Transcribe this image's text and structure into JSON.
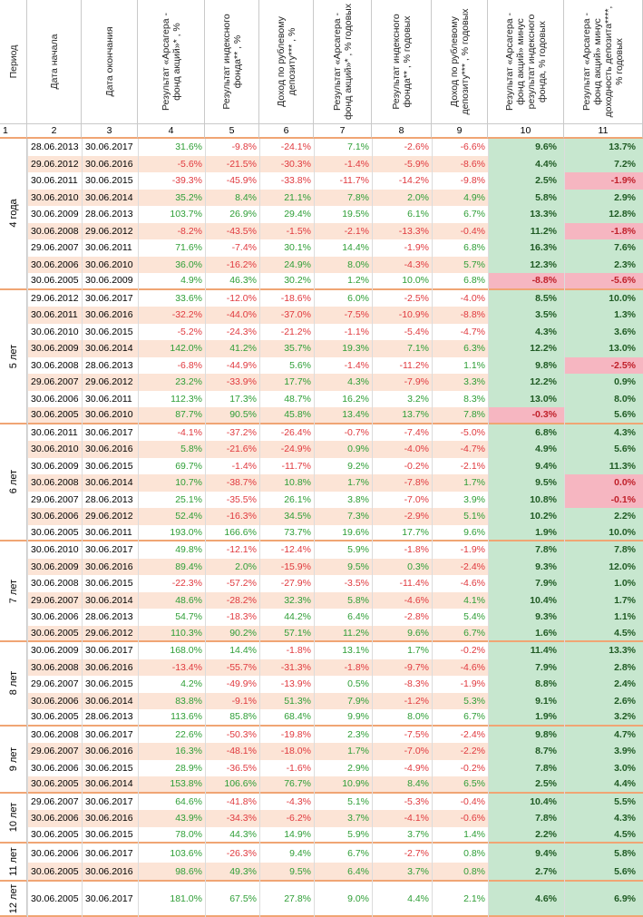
{
  "headers": {
    "col1": "Период",
    "col2": "Дата начала",
    "col3": "Дата окончания",
    "col4": "Результат «Арсагера - фонд акций»* , %",
    "col5": "Результат индексного фонда** , %",
    "col6": "Доход по рублевому депозиту*** , %",
    "col7": "Результат «Арсагера - фонд акций»* , % годовых",
    "col8": "Результат индексного фонда** , % годовых",
    "col9": "Доход по рублевому депозиту*** , % годовых",
    "col10": "Результат «Арсагера - фонд акций» минус результат индексного фонда, % годовых",
    "col11": "Результат «Арсагера - фонд акций» минус доходность депозита****, % годовых"
  },
  "col_numbers": [
    "1",
    "2",
    "3",
    "4",
    "5",
    "6",
    "7",
    "8",
    "9",
    "10",
    "11"
  ],
  "groups": [
    {
      "label": "4 года",
      "rows": [
        [
          "28.06.2013",
          "30.06.2017",
          "31.6%",
          "-9.8%",
          "-24.1%",
          "7.1%",
          "-2.6%",
          "-6.6%",
          "9.6%",
          "13.7%"
        ],
        [
          "29.06.2012",
          "30.06.2016",
          "-5.6%",
          "-21.5%",
          "-30.3%",
          "-1.4%",
          "-5.9%",
          "-8.6%",
          "4.4%",
          "7.2%"
        ],
        [
          "30.06.2011",
          "30.06.2015",
          "-39.3%",
          "-45.9%",
          "-33.8%",
          "-11.7%",
          "-14.2%",
          "-9.8%",
          "2.5%",
          "-1.9%"
        ],
        [
          "30.06.2010",
          "30.06.2014",
          "35.2%",
          "8.4%",
          "21.1%",
          "7.8%",
          "2.0%",
          "4.9%",
          "5.8%",
          "2.9%"
        ],
        [
          "30.06.2009",
          "28.06.2013",
          "103.7%",
          "26.9%",
          "29.4%",
          "19.5%",
          "6.1%",
          "6.7%",
          "13.3%",
          "12.8%"
        ],
        [
          "30.06.2008",
          "29.06.2012",
          "-8.2%",
          "-43.5%",
          "-1.5%",
          "-2.1%",
          "-13.3%",
          "-0.4%",
          "11.2%",
          "-1.8%"
        ],
        [
          "29.06.2007",
          "30.06.2011",
          "71.6%",
          "-7.4%",
          "30.1%",
          "14.4%",
          "-1.9%",
          "6.8%",
          "16.3%",
          "7.6%"
        ],
        [
          "30.06.2006",
          "30.06.2010",
          "36.0%",
          "-16.2%",
          "24.9%",
          "8.0%",
          "-4.3%",
          "5.7%",
          "12.3%",
          "2.3%"
        ],
        [
          "30.06.2005",
          "30.06.2009",
          "4.9%",
          "46.3%",
          "30.2%",
          "1.2%",
          "10.0%",
          "6.8%",
          "-8.8%",
          "-5.6%"
        ]
      ]
    },
    {
      "label": "5 лет",
      "rows": [
        [
          "29.06.2012",
          "30.06.2017",
          "33.6%",
          "-12.0%",
          "-18.6%",
          "6.0%",
          "-2.5%",
          "-4.0%",
          "8.5%",
          "10.0%"
        ],
        [
          "30.06.2011",
          "30.06.2016",
          "-32.2%",
          "-44.0%",
          "-37.0%",
          "-7.5%",
          "-10.9%",
          "-8.8%",
          "3.5%",
          "1.3%"
        ],
        [
          "30.06.2010",
          "30.06.2015",
          "-5.2%",
          "-24.3%",
          "-21.2%",
          "-1.1%",
          "-5.4%",
          "-4.7%",
          "4.3%",
          "3.6%"
        ],
        [
          "30.06.2009",
          "30.06.2014",
          "142.0%",
          "41.2%",
          "35.7%",
          "19.3%",
          "7.1%",
          "6.3%",
          "12.2%",
          "13.0%"
        ],
        [
          "30.06.2008",
          "28.06.2013",
          "-6.8%",
          "-44.9%",
          "5.6%",
          "-1.4%",
          "-11.2%",
          "1.1%",
          "9.8%",
          "-2.5%"
        ],
        [
          "29.06.2007",
          "29.06.2012",
          "23.2%",
          "-33.9%",
          "17.7%",
          "4.3%",
          "-7.9%",
          "3.3%",
          "12.2%",
          "0.9%"
        ],
        [
          "30.06.2006",
          "30.06.2011",
          "112.3%",
          "17.3%",
          "48.7%",
          "16.2%",
          "3.2%",
          "8.3%",
          "13.0%",
          "8.0%"
        ],
        [
          "30.06.2005",
          "30.06.2010",
          "87.7%",
          "90.5%",
          "45.8%",
          "13.4%",
          "13.7%",
          "7.8%",
          "-0.3%",
          "5.6%"
        ]
      ]
    },
    {
      "label": "6 лет",
      "rows": [
        [
          "30.06.2011",
          "30.06.2017",
          "-4.1%",
          "-37.2%",
          "-26.4%",
          "-0.7%",
          "-7.4%",
          "-5.0%",
          "6.8%",
          "4.3%"
        ],
        [
          "30.06.2010",
          "30.06.2016",
          "5.8%",
          "-21.6%",
          "-24.9%",
          "0.9%",
          "-4.0%",
          "-4.7%",
          "4.9%",
          "5.6%"
        ],
        [
          "30.06.2009",
          "30.06.2015",
          "69.7%",
          "-1.4%",
          "-11.7%",
          "9.2%",
          "-0.2%",
          "-2.1%",
          "9.4%",
          "11.3%"
        ],
        [
          "30.06.2008",
          "30.06.2014",
          "10.7%",
          "-38.7%",
          "10.8%",
          "1.7%",
          "-7.8%",
          "1.7%",
          "9.5%",
          "0.0%"
        ],
        [
          "29.06.2007",
          "28.06.2013",
          "25.1%",
          "-35.5%",
          "26.1%",
          "3.8%",
          "-7.0%",
          "3.9%",
          "10.8%",
          "-0.1%"
        ],
        [
          "30.06.2006",
          "29.06.2012",
          "52.4%",
          "-16.3%",
          "34.5%",
          "7.3%",
          "-2.9%",
          "5.1%",
          "10.2%",
          "2.2%"
        ],
        [
          "30.06.2005",
          "30.06.2011",
          "193.0%",
          "166.6%",
          "73.7%",
          "19.6%",
          "17.7%",
          "9.6%",
          "1.9%",
          "10.0%"
        ]
      ]
    },
    {
      "label": "7 лет",
      "rows": [
        [
          "30.06.2010",
          "30.06.2017",
          "49.8%",
          "-12.1%",
          "-12.4%",
          "5.9%",
          "-1.8%",
          "-1.9%",
          "7.8%",
          "7.8%"
        ],
        [
          "30.06.2009",
          "30.06.2016",
          "89.4%",
          "2.0%",
          "-15.9%",
          "9.5%",
          "0.3%",
          "-2.4%",
          "9.3%",
          "12.0%"
        ],
        [
          "30.06.2008",
          "30.06.2015",
          "-22.3%",
          "-57.2%",
          "-27.9%",
          "-3.5%",
          "-11.4%",
          "-4.6%",
          "7.9%",
          "1.0%"
        ],
        [
          "29.06.2007",
          "30.06.2014",
          "48.6%",
          "-28.2%",
          "32.3%",
          "5.8%",
          "-4.6%",
          "4.1%",
          "10.4%",
          "1.7%"
        ],
        [
          "30.06.2006",
          "28.06.2013",
          "54.7%",
          "-18.3%",
          "44.2%",
          "6.4%",
          "-2.8%",
          "5.4%",
          "9.3%",
          "1.1%"
        ],
        [
          "30.06.2005",
          "29.06.2012",
          "110.3%",
          "90.2%",
          "57.1%",
          "11.2%",
          "9.6%",
          "6.7%",
          "1.6%",
          "4.5%"
        ]
      ]
    },
    {
      "label": "8 лет",
      "rows": [
        [
          "30.06.2009",
          "30.06.2017",
          "168.0%",
          "14.4%",
          "-1.8%",
          "13.1%",
          "1.7%",
          "-0.2%",
          "11.4%",
          "13.3%"
        ],
        [
          "30.06.2008",
          "30.06.2016",
          "-13.4%",
          "-55.7%",
          "-31.3%",
          "-1.8%",
          "-9.7%",
          "-4.6%",
          "7.9%",
          "2.8%"
        ],
        [
          "29.06.2007",
          "30.06.2015",
          "4.2%",
          "-49.9%",
          "-13.9%",
          "0.5%",
          "-8.3%",
          "-1.9%",
          "8.8%",
          "2.4%"
        ],
        [
          "30.06.2006",
          "30.06.2014",
          "83.8%",
          "-9.1%",
          "51.3%",
          "7.9%",
          "-1.2%",
          "5.3%",
          "9.1%",
          "2.6%"
        ],
        [
          "30.06.2005",
          "28.06.2013",
          "113.6%",
          "85.8%",
          "68.4%",
          "9.9%",
          "8.0%",
          "6.7%",
          "1.9%",
          "3.2%"
        ]
      ]
    },
    {
      "label": "9 лет",
      "rows": [
        [
          "30.06.2008",
          "30.06.2017",
          "22.6%",
          "-50.3%",
          "-19.8%",
          "2.3%",
          "-7.5%",
          "-2.4%",
          "9.8%",
          "4.7%"
        ],
        [
          "29.06.2007",
          "30.06.2016",
          "16.3%",
          "-48.1%",
          "-18.0%",
          "1.7%",
          "-7.0%",
          "-2.2%",
          "8.7%",
          "3.9%"
        ],
        [
          "30.06.2006",
          "30.06.2015",
          "28.9%",
          "-36.5%",
          "-1.6%",
          "2.9%",
          "-4.9%",
          "-0.2%",
          "7.8%",
          "3.0%"
        ],
        [
          "30.06.2005",
          "30.06.2014",
          "153.8%",
          "106.6%",
          "76.7%",
          "10.9%",
          "8.4%",
          "6.5%",
          "2.5%",
          "4.4%"
        ]
      ]
    },
    {
      "label": "10 лет",
      "rows": [
        [
          "29.06.2007",
          "30.06.2017",
          "64.6%",
          "-41.8%",
          "-4.3%",
          "5.1%",
          "-5.3%",
          "-0.4%",
          "10.4%",
          "5.5%"
        ],
        [
          "30.06.2006",
          "30.06.2016",
          "43.9%",
          "-34.3%",
          "-6.2%",
          "3.7%",
          "-4.1%",
          "-0.6%",
          "7.8%",
          "4.3%"
        ],
        [
          "30.06.2005",
          "30.06.2015",
          "78.0%",
          "44.3%",
          "14.9%",
          "5.9%",
          "3.7%",
          "1.4%",
          "2.2%",
          "4.5%"
        ]
      ]
    },
    {
      "label": "11 лет",
      "rows": [
        [
          "30.06.2006",
          "30.06.2017",
          "103.6%",
          "-26.3%",
          "9.4%",
          "6.7%",
          "-2.7%",
          "0.8%",
          "9.4%",
          "5.8%"
        ],
        [
          "30.06.2005",
          "30.06.2016",
          "98.6%",
          "49.3%",
          "9.5%",
          "6.4%",
          "3.7%",
          "0.8%",
          "2.7%",
          "5.6%"
        ]
      ]
    },
    {
      "label": "12 лет",
      "rows": [
        [
          "30.06.2005",
          "30.06.2017",
          "181.0%",
          "67.5%",
          "27.8%",
          "9.0%",
          "4.4%",
          "2.1%",
          "4.6%",
          "6.9%"
        ]
      ]
    }
  ],
  "colors": {
    "positive": "#2e9e36",
    "negative": "#e0393e",
    "stripe": "#fce4d6",
    "result_green": "#c7e7cf",
    "result_pink": "#f6b6c1",
    "group_border": "#f0a574"
  }
}
